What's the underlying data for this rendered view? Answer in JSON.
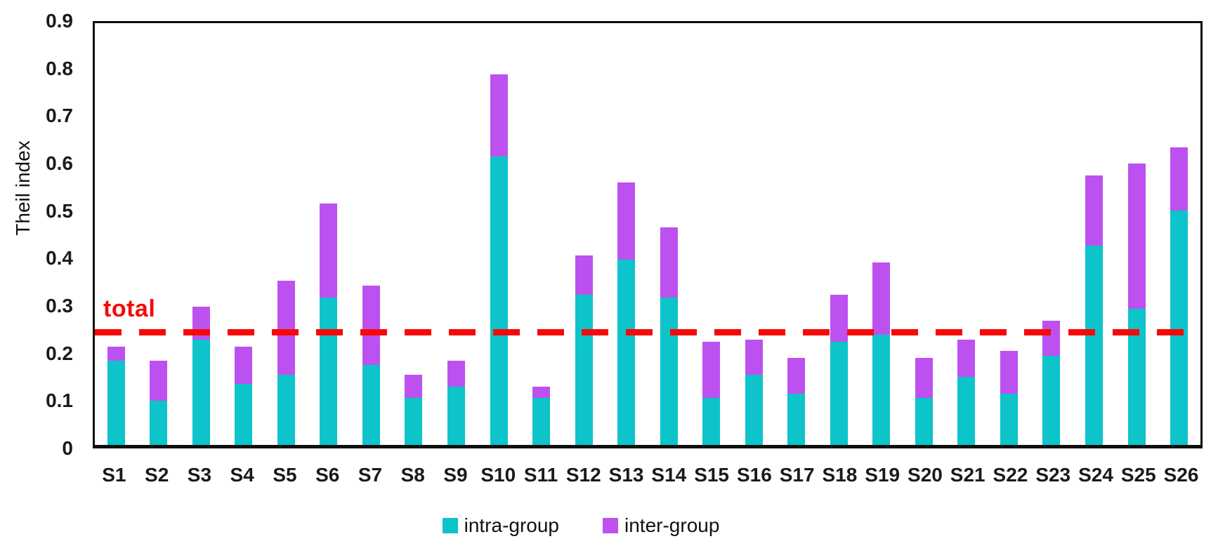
{
  "chart_data": {
    "type": "bar",
    "stacked": true,
    "title": "",
    "xlabel": "",
    "ylabel": "Theil index",
    "ylim": [
      0,
      0.9
    ],
    "ytick_labels": [
      "0.9",
      "0.8",
      "0.7",
      "0.6",
      "0.5",
      "0.4",
      "0.3",
      "0.2",
      "0.1",
      "0"
    ],
    "grid": false,
    "legend_position": "bottom",
    "categories": [
      "S1",
      "S2",
      "S3",
      "S4",
      "S5",
      "S6",
      "S7",
      "S8",
      "S9",
      "S10",
      "S11",
      "S12",
      "S13",
      "S14",
      "S15",
      "S16",
      "S17",
      "S18",
      "S19",
      "S20",
      "S21",
      "S22",
      "S23",
      "S24",
      "S25",
      "S26"
    ],
    "series": [
      {
        "name": "intra-group",
        "color": "#0cc4c9",
        "values": [
          0.18,
          0.095,
          0.225,
          0.13,
          0.15,
          0.315,
          0.17,
          0.1,
          0.125,
          0.615,
          0.1,
          0.32,
          0.395,
          0.315,
          0.1,
          0.15,
          0.11,
          0.22,
          0.235,
          0.1,
          0.145,
          0.11,
          0.19,
          0.425,
          0.29,
          0.5
        ]
      },
      {
        "name": "inter-group",
        "color": "#bd51f0",
        "values": [
          0.03,
          0.085,
          0.07,
          0.08,
          0.2,
          0.2,
          0.17,
          0.05,
          0.055,
          0.175,
          0.025,
          0.085,
          0.165,
          0.15,
          0.12,
          0.075,
          0.075,
          0.1,
          0.155,
          0.085,
          0.08,
          0.09,
          0.075,
          0.15,
          0.31,
          0.135
        ]
      }
    ],
    "reference_line": {
      "label": "total",
      "value": 0.24,
      "color": "#f60909",
      "style": "dashed"
    }
  }
}
